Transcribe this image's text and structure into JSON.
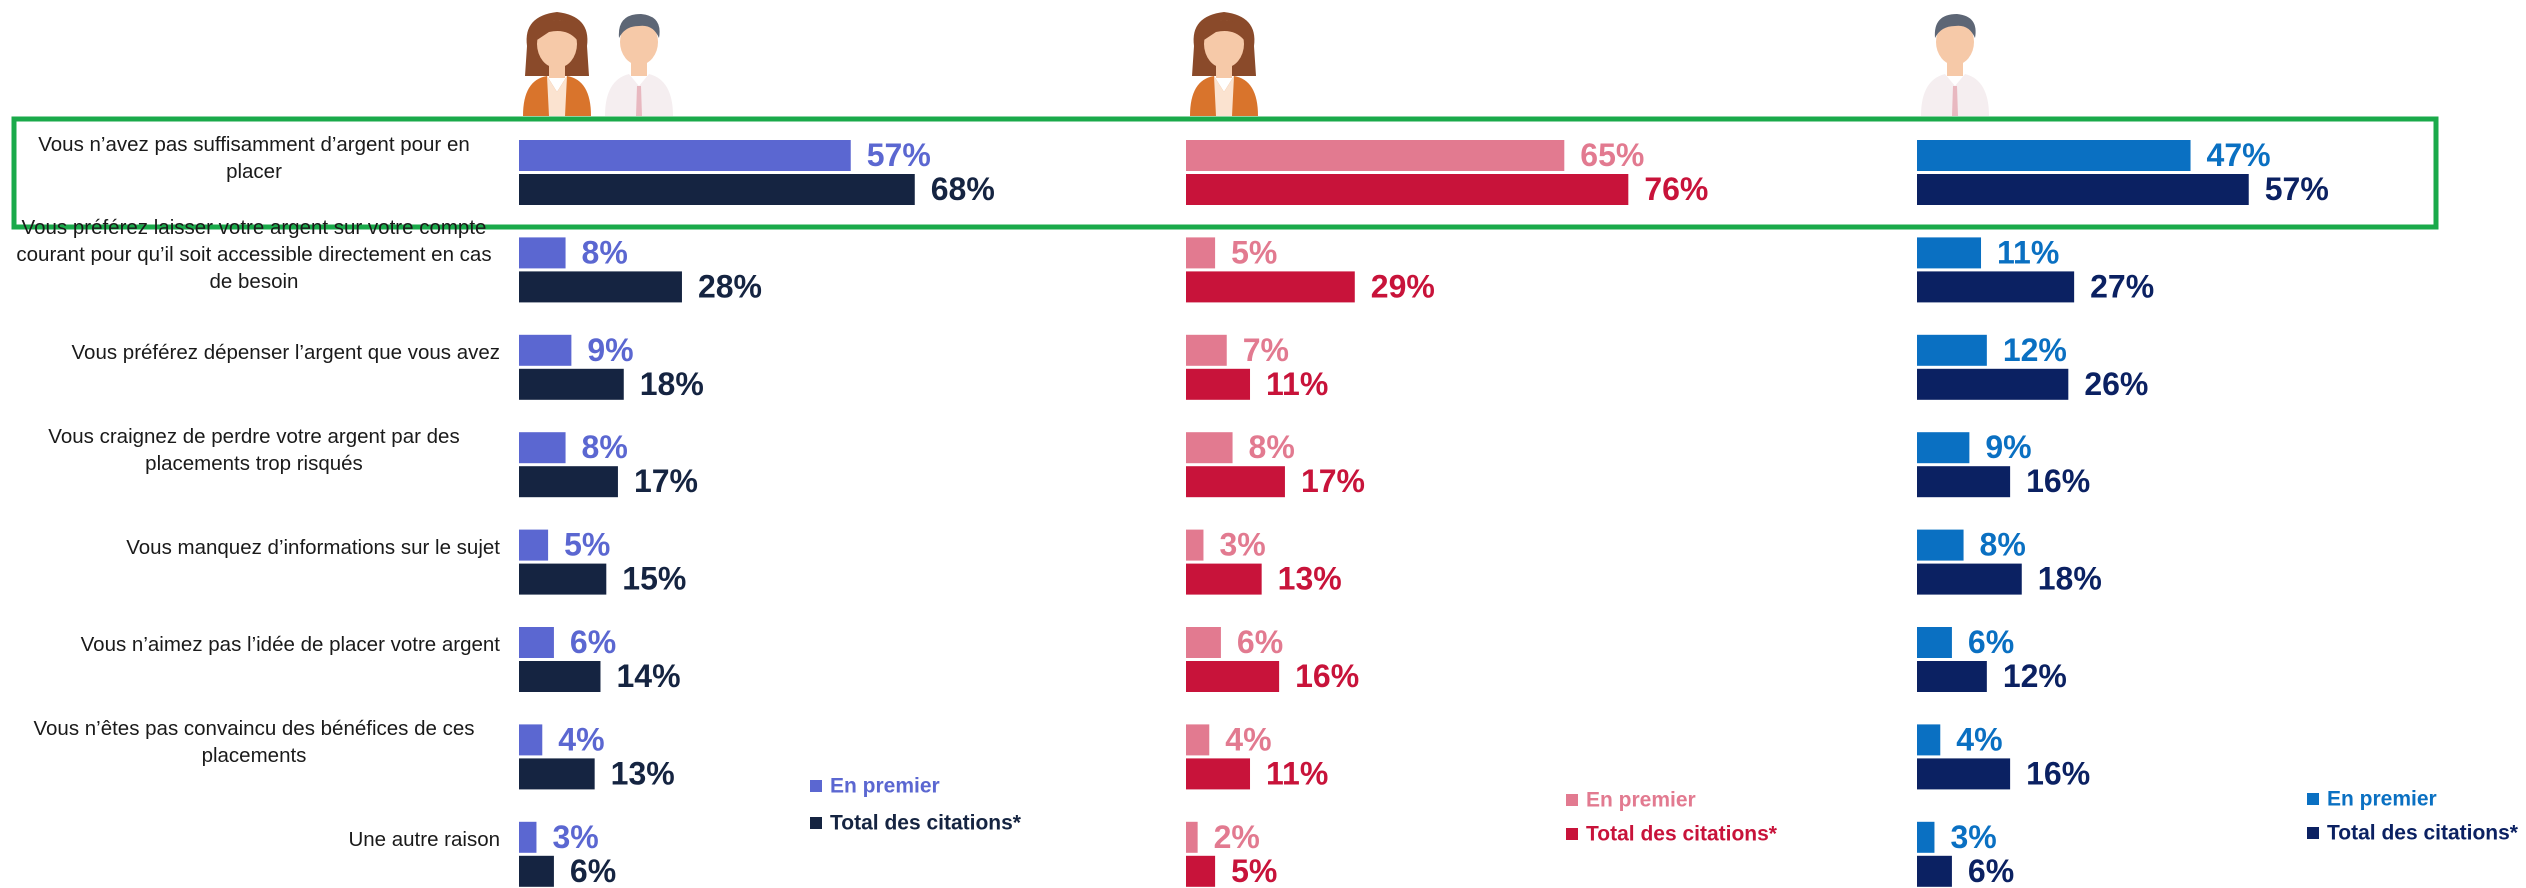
{
  "chart_data": {
    "type": "bar",
    "categories": [
      "Vous n’avez pas suffisamment d’argent pour en placer",
      "Vous préférez laisser votre argent sur votre compte courant pour qu’il soit accessible directement en cas de besoin",
      "Vous préférez dépenser l’argent que vous avez",
      "Vous craignez de perdre votre argent par des placements trop risqués",
      "Vous manquez d’informations sur le sujet",
      "Vous n’aimez pas l’idée de placer votre argent",
      "Vous n’êtes pas convaincu des bénéfices de ces placements",
      "Une autre raison"
    ],
    "panels": [
      {
        "series": [
          {
            "name": "En premier",
            "color": "#5b67d1",
            "values": [
              57,
              8,
              9,
              8,
              5,
              6,
              4,
              3
            ],
            "value_labels": [
              "57%",
              "8%",
              "9%",
              "8%",
              "5%",
              "6%",
              "4%",
              "3%"
            ]
          },
          {
            "name": "Total des citations*",
            "color": "#152441",
            "values": [
              68,
              28,
              18,
              17,
              15,
              14,
              13,
              6
            ],
            "value_labels": [
              "68%",
              "28%",
              "18%",
              "17%",
              "15%",
              "14%",
              "13%",
              "6%"
            ]
          }
        ]
      },
      {
        "series": [
          {
            "name": "En premier",
            "color": "#e27a90",
            "values": [
              65,
              5,
              7,
              8,
              3,
              6,
              4,
              2
            ],
            "value_labels": [
              "65%",
              "5%",
              "7%",
              "8%",
              "3%",
              "6%",
              "4%",
              "2%"
            ]
          },
          {
            "name": "Total des citations*",
            "color": "#c8133a",
            "values": [
              76,
              29,
              11,
              17,
              13,
              16,
              11,
              5
            ],
            "value_labels": [
              "76%",
              "29%",
              "11%",
              "17%",
              "13%",
              "16%",
              "11%",
              "5%"
            ]
          }
        ]
      },
      {
        "series": [
          {
            "name": "En premier",
            "color": "#0a70c2",
            "values": [
              47,
              11,
              12,
              9,
              8,
              6,
              4,
              3
            ],
            "value_labels": [
              "47%",
              "11%",
              "12%",
              "9%",
              "8%",
              "6%",
              "4%",
              "3%"
            ]
          },
          {
            "name": "Total des citations*",
            "color": "#0b2162",
            "values": [
              57,
              27,
              26,
              16,
              18,
              12,
              16,
              6
            ],
            "value_labels": [
              "57%",
              "27%",
              "26%",
              "16%",
              "18%",
              "12%",
              "16%",
              "6%"
            ]
          }
        ]
      }
    ]
  }
}
